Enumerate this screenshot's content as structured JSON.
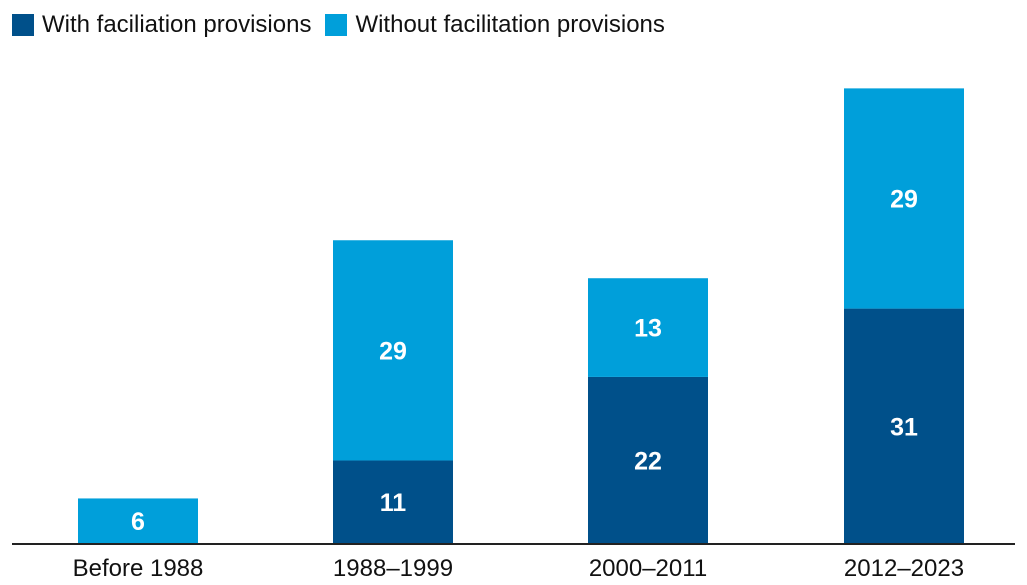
{
  "colors": {
    "with": "#00508A",
    "without": "#009FDA",
    "axis": "#222222"
  },
  "chart_data": {
    "type": "bar",
    "stacked": true,
    "categories": [
      "Before 1988",
      "1988–1999",
      "2000–2011",
      "2012–2023"
    ],
    "series": [
      {
        "name": "With faciliation provisions",
        "values": [
          0,
          11,
          22,
          31
        ]
      },
      {
        "name": "Without facilitation provisions",
        "values": [
          6,
          29,
          13,
          29
        ]
      }
    ],
    "title": "",
    "xlabel": "",
    "ylabel": "",
    "ylim": [
      0,
      64
    ],
    "grid": false,
    "legend": "top-left"
  }
}
